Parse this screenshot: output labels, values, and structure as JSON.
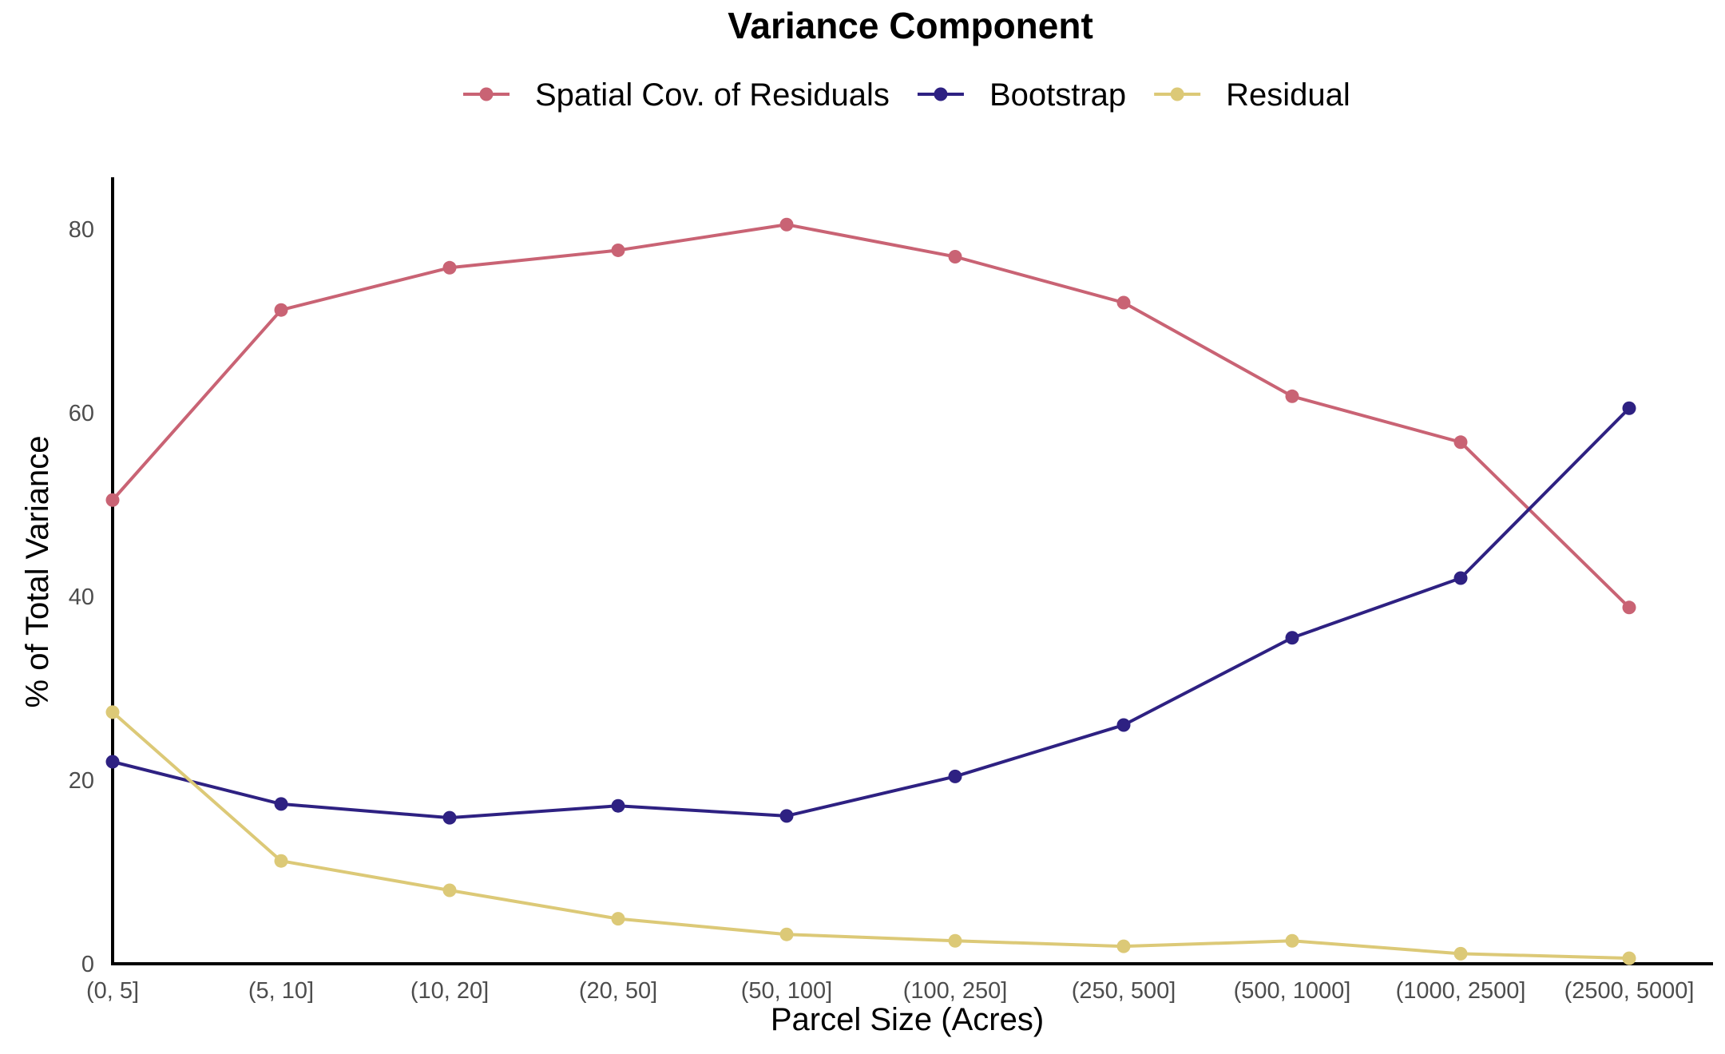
{
  "chart_data": {
    "type": "line",
    "title": "",
    "xlabel": "Parcel Size (Acres)",
    "ylabel": "% of Total Variance",
    "ylim": [
      0,
      85
    ],
    "yticks": [
      0,
      20,
      40,
      60,
      80
    ],
    "grid": false,
    "legend": {
      "title": "Variance Component",
      "position": "top"
    },
    "categories": [
      "(0, 5]",
      "(5, 10]",
      "(10, 20]",
      "(20, 50]",
      "(50, 100]",
      "(100, 250]",
      "(250, 500]",
      "(500, 1000]",
      "(1000, 2500]",
      "(2500, 5000]"
    ],
    "series": [
      {
        "name": "Spatial Cov. of Residuals",
        "color": "#c96374",
        "values": [
          50.5,
          71.2,
          75.8,
          77.7,
          80.5,
          77.0,
          72.0,
          61.8,
          56.8,
          38.8
        ]
      },
      {
        "name": "Bootstrap",
        "color": "#2e2182",
        "values": [
          22.0,
          17.4,
          15.9,
          17.2,
          16.1,
          20.4,
          26.0,
          35.5,
          42.0,
          60.5
        ]
      },
      {
        "name": "Residual",
        "color": "#dcc977",
        "values": [
          27.4,
          11.2,
          8.0,
          4.9,
          3.2,
          2.5,
          1.9,
          2.5,
          1.1,
          0.6
        ]
      }
    ]
  }
}
